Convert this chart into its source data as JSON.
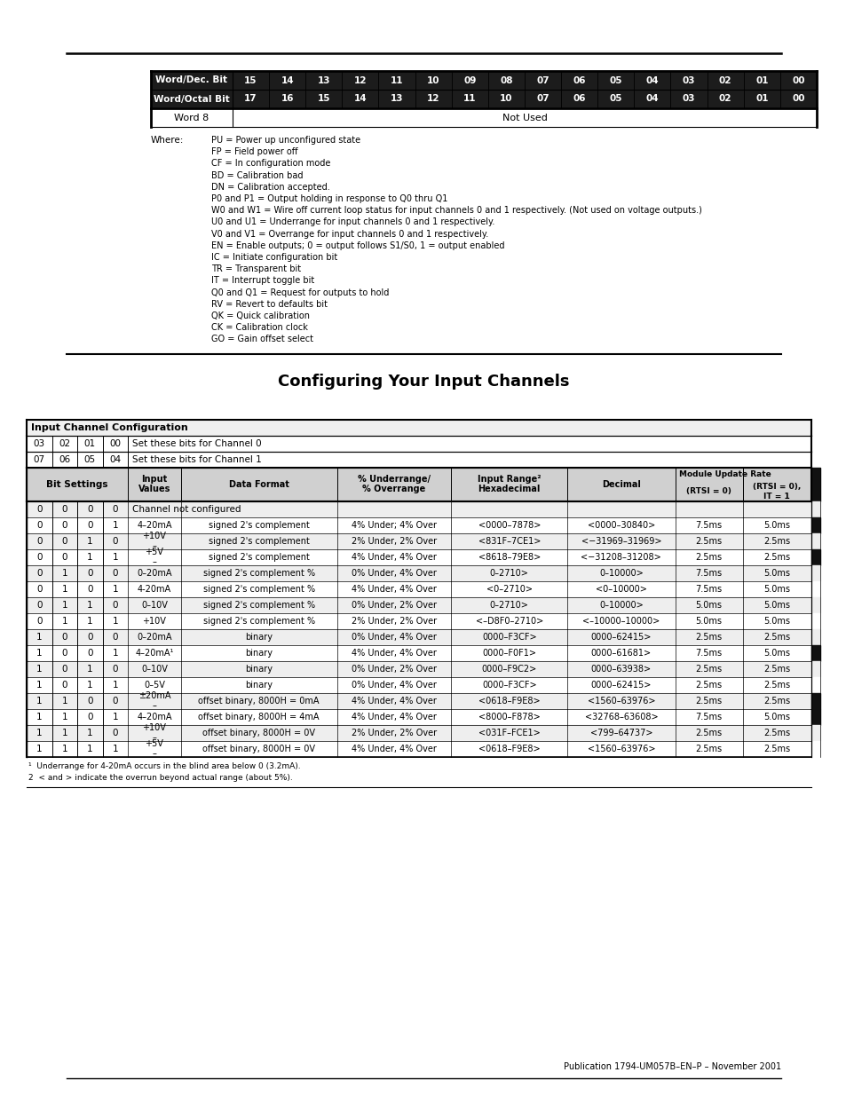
{
  "page_bg": "#ffffff",
  "word_table": {
    "headers_row1": [
      "Word/Dec. Bit",
      "15",
      "14",
      "13",
      "12",
      "11",
      "10",
      "09",
      "08",
      "07",
      "06",
      "05",
      "04",
      "03",
      "02",
      "01",
      "00"
    ],
    "headers_row2": [
      "Word/Octal Bit",
      "17",
      "16",
      "15",
      "14",
      "13",
      "12",
      "11",
      "10",
      "07",
      "06",
      "05",
      "04",
      "03",
      "02",
      "01",
      "00"
    ],
    "word8_label": "Word 8",
    "word8_value": "Not Used"
  },
  "where_label": "Where:",
  "where_text": [
    "PU = Power up unconfigured state",
    "FP = Field power off",
    "CF = In configuration mode",
    "BD = Calibration bad",
    "DN = Calibration accepted.",
    "P0 and P1 = Output holding in response to Q0 thru Q1",
    "W0 and W1 = Wire off current loop status for input channels 0 and 1 respectively. (Not used on voltage outputs.)",
    "U0 and U1 = Underrange for input channels 0 and 1 respectively.",
    "V0 and V1 = Overrange for input channels 0 and 1 respectively.",
    "EN = Enable outputs; 0 = output follows S1/S0, 1 = output enabled",
    "IC = Initiate configuration bit",
    "TR = Transparent bit",
    "IT = Interrupt toggle bit",
    "Q0 and Q1 = Request for outputs to hold",
    "RV = Revert to defaults bit",
    "QK = Quick calibration",
    "CK = Calibration clock",
    "GO = Gain offset select"
  ],
  "section_title": "Configuring Your Input Channels",
  "input_config_rows": [
    [
      "03",
      "02",
      "01",
      "00",
      "Set these bits for Channel 0"
    ],
    [
      "07",
      "06",
      "05",
      "04",
      "Set these bits for Channel 1"
    ]
  ],
  "data_rows": [
    [
      "0",
      "0",
      "0",
      "0",
      "Channel not configured",
      "",
      "",
      "",
      "",
      "",
      ""
    ],
    [
      "0",
      "0",
      "0",
      "1",
      "4–20mA",
      "signed 2's complement",
      "4% Under; 4% Over",
      "<0000–7878>",
      "<0000–30840>",
      "7.5ms",
      "5.0ms"
    ],
    [
      "0",
      "0",
      "1",
      "0",
      "+10V\n–",
      "signed 2's complement",
      "2% Under, 2% Over",
      "<831F–7CE1>",
      "<−31969–31969>",
      "2.5ms",
      "2.5ms"
    ],
    [
      "0",
      "0",
      "1",
      "1",
      "+5V\n–",
      "signed 2's complement",
      "4% Under, 4% Over",
      "<8618–79E8>",
      "<−31208–31208>",
      "2.5ms",
      "2.5ms"
    ],
    [
      "0",
      "1",
      "0",
      "0",
      "0–20mA",
      "signed 2's complement %",
      "0% Under, 4% Over",
      "0–2710>",
      "0–10000>",
      "7.5ms",
      "5.0ms"
    ],
    [
      "0",
      "1",
      "0",
      "1",
      "4-20mA",
      "signed 2's complement %",
      "4% Under, 4% Over",
      "<0–2710>",
      "<0–10000>",
      "7.5ms",
      "5.0ms"
    ],
    [
      "0",
      "1",
      "1",
      "0",
      "0–10V",
      "signed 2's complement %",
      "0% Under, 2% Over",
      "0–2710>",
      "0–10000>",
      "5.0ms",
      "5.0ms"
    ],
    [
      "0",
      "1",
      "1",
      "1",
      "+10V",
      "signed 2's complement %",
      "2% Under, 2% Over",
      "<–D8F0–2710>",
      "<–10000–10000>",
      "5.0ms",
      "5.0ms"
    ],
    [
      "1",
      "0",
      "0",
      "0",
      "0–20mA",
      "binary",
      "0% Under, 4% Over",
      "0000–F3CF>",
      "0000–62415>",
      "2.5ms",
      "2.5ms"
    ],
    [
      "1",
      "0",
      "0",
      "1",
      "4–20mA¹",
      "binary",
      "4% Under, 4% Over",
      "0000–F0F1>",
      "0000–61681>",
      "7.5ms",
      "5.0ms"
    ],
    [
      "1",
      "0",
      "1",
      "0",
      "0–10V",
      "binary",
      "0% Under, 2% Over",
      "0000–F9C2>",
      "0000–63938>",
      "2.5ms",
      "2.5ms"
    ],
    [
      "1",
      "0",
      "1",
      "1",
      "0–5V",
      "binary",
      "0% Under, 4% Over",
      "0000–F3CF>",
      "0000–62415>",
      "2.5ms",
      "2.5ms"
    ],
    [
      "1",
      "1",
      "0",
      "0",
      "±20mA\n–",
      "offset binary, 8000H = 0mA",
      "4% Under, 4% Over",
      "<0618–F9E8>",
      "<1560–63976>",
      "2.5ms",
      "2.5ms"
    ],
    [
      "1",
      "1",
      "0",
      "1",
      "4–20mA",
      "offset binary, 8000H = 4mA",
      "4% Under, 4% Over",
      "<8000–F878>",
      "<32768–63608>",
      "7.5ms",
      "5.0ms"
    ],
    [
      "1",
      "1",
      "1",
      "0",
      "+10V\n–",
      "offset binary, 8000H = 0V",
      "2% Under, 2% Over",
      "<031F–FCE1>",
      "<799–64737>",
      "2.5ms",
      "2.5ms"
    ],
    [
      "1",
      "1",
      "1",
      "1",
      "+5V\n–",
      "offset binary, 8000H = 0V",
      "4% Under, 4% Over",
      "<0618–F9E8>",
      "<1560–63976>",
      "2.5ms",
      "2.5ms"
    ]
  ],
  "footnotes": [
    "¹  Underrange for 4-20mA occurs in the blind area below 0 (3.2mA).",
    "2  < and > indicate the overrun beyond actual range (about 5%)."
  ],
  "footer": "Publication 1794-UM057B–EN–P – November 2001",
  "shaded_rows": [
    0,
    2,
    4,
    6,
    8,
    10,
    12,
    14
  ],
  "black_sidebar_rows": [
    1,
    3,
    9,
    12,
    13
  ]
}
